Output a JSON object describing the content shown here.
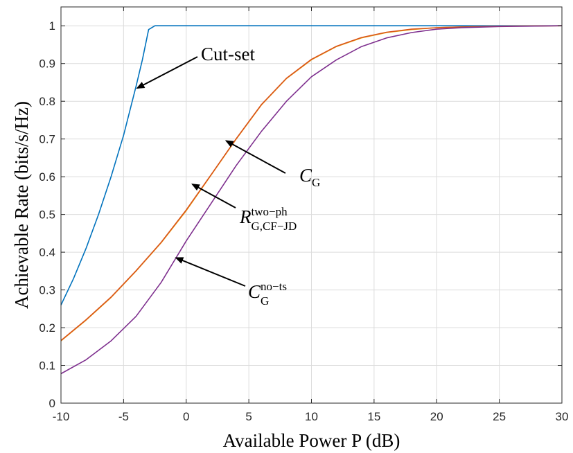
{
  "chart_data": {
    "type": "line",
    "xlabel": "Available Power P (dB)",
    "ylabel": "Achievable Rate (bits/s/Hz)",
    "xlim": [
      -10,
      30
    ],
    "ylim": [
      0,
      1.05
    ],
    "xticks": [
      -10,
      -5,
      0,
      5,
      10,
      15,
      20,
      25,
      30
    ],
    "yticks": [
      0,
      0.1,
      0.2,
      0.3,
      0.4,
      0.5,
      0.6,
      0.7,
      0.8,
      0.9,
      1
    ],
    "xtick_labels": [
      "-10",
      "-5",
      "0",
      "5",
      "10",
      "15",
      "20",
      "25",
      "30"
    ],
    "ytick_labels": [
      "0",
      "0.1",
      "0.2",
      "0.3",
      "0.4",
      "0.5",
      "0.6",
      "0.7",
      "0.8",
      "0.9",
      "1"
    ],
    "grid": true,
    "legend": "none",
    "series": [
      {
        "color": "#0072BD",
        "x": [
          -10,
          -9,
          -8,
          -7,
          -6,
          -5,
          -4,
          -3.5,
          -3,
          -2.5,
          30
        ],
        "y": [
          0.26,
          0.33,
          0.41,
          0.5,
          0.6,
          0.71,
          0.84,
          0.91,
          0.99,
          1.0,
          1.0
        ]
      },
      {
        "color": "#EDB120",
        "x": [
          -10,
          -8,
          -6,
          -4,
          -2,
          0,
          2,
          4,
          6,
          8,
          10,
          12,
          14,
          16,
          18,
          20,
          22,
          25,
          30
        ],
        "y": [
          0.165,
          0.22,
          0.28,
          0.35,
          0.425,
          0.51,
          0.605,
          0.7,
          0.79,
          0.86,
          0.91,
          0.945,
          0.968,
          0.982,
          0.99,
          0.995,
          0.997,
          0.999,
          1.0
        ]
      },
      {
        "color": "#D95319",
        "x": [
          -10,
          -8,
          -6,
          -4,
          -2,
          0,
          2,
          4,
          6,
          8,
          10,
          12,
          14,
          16,
          18,
          20,
          22,
          25,
          30
        ],
        "y": [
          0.166,
          0.221,
          0.281,
          0.351,
          0.426,
          0.512,
          0.606,
          0.701,
          0.791,
          0.861,
          0.911,
          0.946,
          0.969,
          0.983,
          0.991,
          0.995,
          0.997,
          0.999,
          1.0
        ]
      },
      {
        "color": "#7E2F8E",
        "x": [
          -10,
          -8,
          -6,
          -4,
          -2,
          0,
          2,
          4,
          6,
          8,
          10,
          12,
          14,
          16,
          18,
          20,
          22,
          25,
          30
        ],
        "y": [
          0.078,
          0.115,
          0.165,
          0.23,
          0.32,
          0.43,
          0.53,
          0.63,
          0.72,
          0.8,
          0.865,
          0.91,
          0.945,
          0.968,
          0.982,
          0.991,
          0.995,
          0.998,
          1.0
        ]
      }
    ],
    "annotations": [
      {
        "main": "Cut-set",
        "sup": "",
        "sub": "",
        "point": [
          -3.9,
          0.835
        ]
      },
      {
        "main": "C",
        "sup": "",
        "sub": "G",
        "point": [
          3.2,
          0.695
        ]
      },
      {
        "main": "R",
        "sup": "two−ph",
        "sub": "G,CF−JD",
        "point": [
          0.5,
          0.58
        ]
      },
      {
        "main": "C",
        "sup": "no−ts",
        "sub": "G",
        "point": [
          -0.8,
          0.385
        ]
      }
    ]
  }
}
